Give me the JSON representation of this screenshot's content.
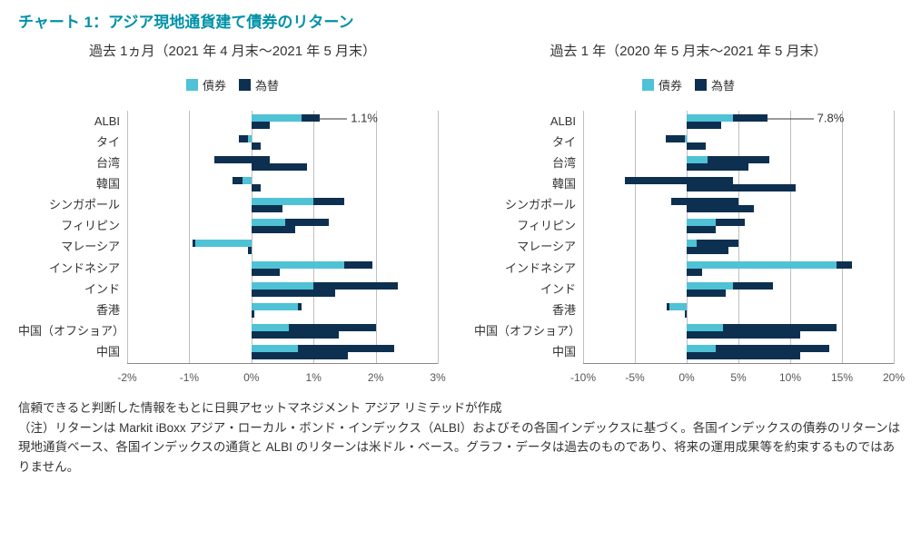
{
  "title": "チャート 1：アジア現地通貨建て債券のリターン",
  "legend": {
    "bond": {
      "label": "債券",
      "color": "#4fc2d6"
    },
    "fx": {
      "label": "為替",
      "color": "#0d3050"
    }
  },
  "grid_color": "#bfbfbf",
  "axis_color": "#888888",
  "label_color": "#333333",
  "background_color": "#ffffff",
  "panels": [
    {
      "subtitle": "過去 1ヵ月（2021 年 4 月末～2021 年 5 月末）",
      "xmin": -2,
      "xmax": 3,
      "xtick_step": 1,
      "xtick_suffix": "%",
      "annotation": {
        "row": 0,
        "value": 1.1,
        "text": "1.1%",
        "offset_pct": 10
      },
      "categories": [
        {
          "label": "ALBI",
          "bond": 0.8,
          "fx": 0.3
        },
        {
          "label": "タイ",
          "bond": -0.2,
          "fx": 0.15
        },
        {
          "label": "台湾",
          "bond": -0.6,
          "fx": 0.9
        },
        {
          "label": "韓国",
          "bond": -0.3,
          "fx": 0.15
        },
        {
          "label": "シンガポール",
          "bond": 1.0,
          "fx": 0.5
        },
        {
          "label": "フィリピン",
          "bond": 0.55,
          "fx": 0.7
        },
        {
          "label": "マレーシア",
          "bond": -0.9,
          "fx": -0.05
        },
        {
          "label": "インドネシア",
          "bond": 1.5,
          "fx": 0.45
        },
        {
          "label": "インド",
          "bond": 1.0,
          "fx": 1.35
        },
        {
          "label": "香港",
          "bond": 0.75,
          "fx": 0.05
        },
        {
          "label": "中国（オフショア）",
          "bond": 0.6,
          "fx": 1.4
        },
        {
          "label": "中国",
          "bond": 0.75,
          "fx": 1.55
        }
      ]
    },
    {
      "subtitle": "過去 1 年（2020 年 5 月末～2021 年 5 月末）",
      "xmin": -10,
      "xmax": 20,
      "xtick_step": 5,
      "xtick_suffix": "%",
      "annotation": {
        "row": 0,
        "value": 7.8,
        "text": "7.8%",
        "offset_pct": 16
      },
      "categories": [
        {
          "label": "ALBI",
          "bond": 4.5,
          "fx": 3.3
        },
        {
          "label": "タイ",
          "bond": -2.0,
          "fx": 1.8
        },
        {
          "label": "台湾",
          "bond": 2.0,
          "fx": 6.0
        },
        {
          "label": "韓国",
          "bond": -6.0,
          "fx": 10.5
        },
        {
          "label": "シンガポール",
          "bond": -1.5,
          "fx": 6.5
        },
        {
          "label": "フィリピン",
          "bond": 2.8,
          "fx": 2.8
        },
        {
          "label": "マレーシア",
          "bond": 1.0,
          "fx": 4.0
        },
        {
          "label": "インドネシア",
          "bond": 14.5,
          "fx": 1.5
        },
        {
          "label": "インド",
          "bond": 4.5,
          "fx": 3.8
        },
        {
          "label": "香港",
          "bond": -1.7,
          "fx": -0.2
        },
        {
          "label": "中国（オフショア）",
          "bond": 3.5,
          "fx": 11.0
        },
        {
          "label": "中国",
          "bond": 2.8,
          "fx": 11.0
        }
      ]
    }
  ],
  "footnote_lines": [
    "信頼できると判断した情報をもとに日興アセットマネジメント アジア リミテッドが作成",
    "（注）リターンは Markit iBoxx アジア・ローカル・ボンド・インデックス（ALBI）およびその各国インデックスに基づく。各国インデックスの債券のリターンは現地通貨ベース、各国インデックスの通貨と ALBI のリターンは米ドル・ベース。グラフ・データは過去のものであり、将来の運用成果等を約束するものではありません。"
  ]
}
